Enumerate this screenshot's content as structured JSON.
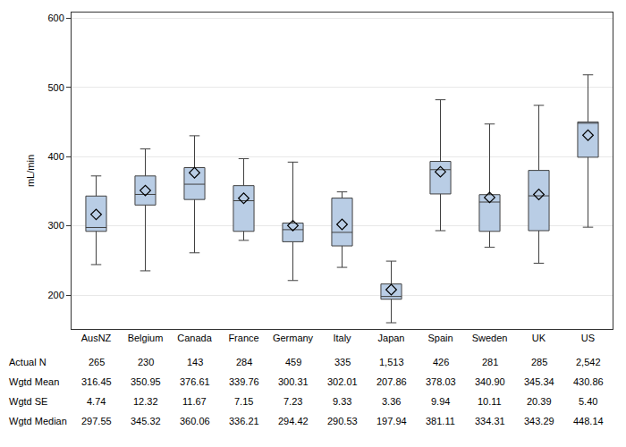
{
  "chart_data": {
    "type": "box",
    "y_label": "mL/min",
    "categories": [
      "AusNZ",
      "Belgium",
      "Canada",
      "France",
      "Germany",
      "Italy",
      "Japan",
      "Spain",
      "Sweden",
      "UK",
      "US"
    ],
    "lower": [
      244,
      235,
      261,
      279,
      221,
      240,
      160,
      293,
      269,
      246,
      298
    ],
    "q1": [
      292,
      330,
      338,
      292,
      277,
      271,
      194,
      346,
      292,
      293,
      399
    ],
    "median": [
      297.55,
      345.32,
      360.06,
      336.21,
      294.42,
      290.53,
      197.94,
      381.11,
      334.31,
      343.29,
      448.14
    ],
    "q3": [
      343,
      372,
      384,
      358,
      304,
      340,
      216,
      393,
      345,
      380,
      450
    ],
    "upper": [
      372,
      411,
      430,
      397,
      392,
      349,
      249,
      482,
      447,
      474,
      518
    ],
    "mean": [
      316.45,
      350.95,
      376.61,
      339.76,
      300.31,
      302.01,
      207.86,
      378.03,
      340.9,
      345.34,
      430.86
    ],
    "color": "#b9cde5",
    "marker": "diamond-open",
    "ylim": [
      151,
      608
    ],
    "yticks": [
      200,
      300,
      400,
      500,
      600
    ],
    "grid": true,
    "table": {
      "rows": [
        {
          "label": "Actual N",
          "values": [
            "265",
            "230",
            "143",
            "284",
            "459",
            "335",
            "1,513",
            "426",
            "281",
            "285",
            "2,542"
          ]
        },
        {
          "label": "Wgtd Mean",
          "values": [
            "316.45",
            "350.95",
            "376.61",
            "339.76",
            "300.31",
            "302.01",
            "207.86",
            "378.03",
            "340.90",
            "345.34",
            "430.86"
          ]
        },
        {
          "label": "Wgtd SE",
          "values": [
            "4.74",
            "12.32",
            "11.67",
            "7.15",
            "7.23",
            "9.33",
            "3.36",
            "9.94",
            "10.11",
            "20.39",
            "5.40"
          ]
        },
        {
          "label": "Wgtd Median",
          "values": [
            "297.55",
            "345.32",
            "360.06",
            "336.21",
            "294.42",
            "290.53",
            "197.94",
            "381.11",
            "334.31",
            "343.29",
            "448.14"
          ]
        }
      ]
    }
  }
}
